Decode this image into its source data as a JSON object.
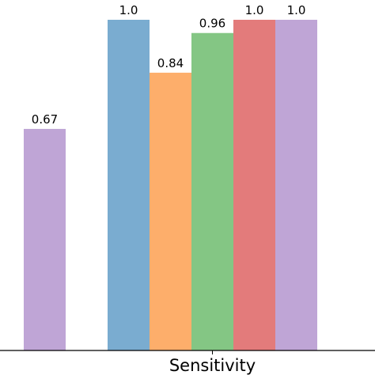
{
  "chart_data": {
    "type": "bar",
    "categories": [
      "",
      "Sensitivity"
    ],
    "series": [
      {
        "color": "#7aacd0",
        "values": [
          null,
          1.0
        ],
        "labels": [
          null,
          "1.0"
        ]
      },
      {
        "color": "#fdae6b",
        "values": [
          null,
          0.84
        ],
        "labels": [
          null,
          "0.84"
        ]
      },
      {
        "color": "#84c684",
        "values": [
          null,
          0.96
        ],
        "labels": [
          null,
          "0.96"
        ]
      },
      {
        "color": "#e37b7b",
        "values": [
          null,
          1.0
        ],
        "labels": [
          null,
          "1.0"
        ]
      },
      {
        "color": "#bfa5d6",
        "values": [
          0.67,
          1.0
        ],
        "labels": [
          "0.67",
          "1.0"
        ]
      }
    ],
    "ylim": [
      0,
      1.0
    ],
    "grid": false,
    "legend": "none"
  }
}
